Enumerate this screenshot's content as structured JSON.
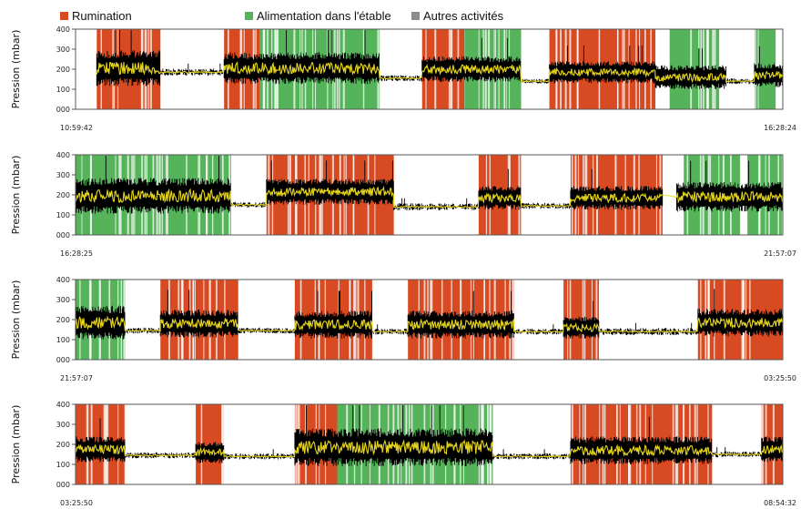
{
  "colors": {
    "rumination": "#d84a22",
    "feeding": "#55b35a",
    "other": "#8c8c8c",
    "signal": "#000000",
    "mean": "#f2e21c",
    "frame": "#555555",
    "stripe": "#ffffff"
  },
  "legend": [
    {
      "label": "Rumination",
      "color": "#d84a22"
    },
    {
      "label": "Alimentation dans l'étable",
      "color": "#55b35a"
    },
    {
      "label": "Autres activités",
      "color": "#8c8c8c"
    }
  ],
  "chart_data": [
    {
      "type": "line",
      "ylabel": "Pression (mbar)",
      "ylim": [
        0,
        400
      ],
      "yticks": [
        "000",
        "100",
        "200",
        "300",
        "400"
      ],
      "x_start": "10:59:42",
      "x_end": "16:28:24",
      "intervals": [
        {
          "activity": "rumination",
          "start": 0.03,
          "end": 0.12
        },
        {
          "activity": "rumination",
          "start": 0.21,
          "end": 0.26
        },
        {
          "activity": "feeding",
          "start": 0.26,
          "end": 0.43
        },
        {
          "activity": "rumination",
          "start": 0.49,
          "end": 0.55
        },
        {
          "activity": "feeding",
          "start": 0.55,
          "end": 0.63
        },
        {
          "activity": "rumination",
          "start": 0.67,
          "end": 0.82
        },
        {
          "activity": "feeding",
          "start": 0.84,
          "end": 0.91
        },
        {
          "activity": "feeding",
          "start": 0.96,
          "end": 0.99
        }
      ],
      "segments": [
        {
          "kind": "active",
          "start": 0.03,
          "end": 0.12,
          "mean": 205,
          "spread": 90
        },
        {
          "kind": "quiet",
          "start": 0.12,
          "end": 0.21,
          "mean": 185,
          "spread": 18
        },
        {
          "kind": "active",
          "start": 0.21,
          "end": 0.43,
          "mean": 205,
          "spread": 80
        },
        {
          "kind": "quiet",
          "start": 0.43,
          "end": 0.49,
          "mean": 155,
          "spread": 15
        },
        {
          "kind": "active",
          "start": 0.49,
          "end": 0.63,
          "mean": 200,
          "spread": 65
        },
        {
          "kind": "quiet",
          "start": 0.63,
          "end": 0.67,
          "mean": 140,
          "spread": 12
        },
        {
          "kind": "active",
          "start": 0.67,
          "end": 0.82,
          "mean": 185,
          "spread": 55
        },
        {
          "kind": "active",
          "start": 0.82,
          "end": 0.92,
          "mean": 160,
          "spread": 60
        },
        {
          "kind": "quiet",
          "start": 0.92,
          "end": 0.96,
          "mean": 140,
          "spread": 15
        },
        {
          "kind": "active",
          "start": 0.96,
          "end": 1.0,
          "mean": 170,
          "spread": 60
        }
      ]
    },
    {
      "type": "line",
      "ylabel": "Pression (mbar)",
      "ylim": [
        0,
        400
      ],
      "yticks": [
        "000",
        "100",
        "200",
        "300",
        "400"
      ],
      "x_start": "16:28:25",
      "x_end": "21:57:07",
      "intervals": [
        {
          "activity": "feeding",
          "start": 0.0,
          "end": 0.22
        },
        {
          "activity": "rumination",
          "start": 0.27,
          "end": 0.45
        },
        {
          "activity": "rumination",
          "start": 0.57,
          "end": 0.63
        },
        {
          "activity": "rumination",
          "start": 0.7,
          "end": 0.83
        },
        {
          "activity": "feeding",
          "start": 0.86,
          "end": 0.94
        },
        {
          "activity": "feeding",
          "start": 0.95,
          "end": 1.0
        }
      ],
      "segments": [
        {
          "kind": "active",
          "start": 0.0,
          "end": 0.22,
          "mean": 195,
          "spread": 90
        },
        {
          "kind": "quiet",
          "start": 0.22,
          "end": 0.27,
          "mean": 150,
          "spread": 15
        },
        {
          "kind": "active",
          "start": 0.27,
          "end": 0.45,
          "mean": 215,
          "spread": 65
        },
        {
          "kind": "quiet",
          "start": 0.45,
          "end": 0.57,
          "mean": 140,
          "spread": 18
        },
        {
          "kind": "active",
          "start": 0.57,
          "end": 0.63,
          "mean": 185,
          "spread": 60
        },
        {
          "kind": "quiet",
          "start": 0.63,
          "end": 0.7,
          "mean": 145,
          "spread": 15
        },
        {
          "kind": "active",
          "start": 0.7,
          "end": 0.83,
          "mean": 185,
          "spread": 60
        },
        {
          "kind": "active",
          "start": 0.85,
          "end": 1.0,
          "mean": 190,
          "spread": 75
        }
      ]
    },
    {
      "type": "line",
      "ylabel": "Pression (mbar)",
      "ylim": [
        0,
        400
      ],
      "yticks": [
        "000",
        "100",
        "200",
        "300",
        "400"
      ],
      "x_start": "21:57:07",
      "x_end": "03:25:50",
      "intervals": [
        {
          "activity": "feeding",
          "start": 0.0,
          "end": 0.07
        },
        {
          "activity": "rumination",
          "start": 0.12,
          "end": 0.23
        },
        {
          "activity": "rumination",
          "start": 0.31,
          "end": 0.42
        },
        {
          "activity": "rumination",
          "start": 0.47,
          "end": 0.62
        },
        {
          "activity": "rumination",
          "start": 0.69,
          "end": 0.74
        },
        {
          "activity": "rumination",
          "start": 0.88,
          "end": 1.0
        }
      ],
      "segments": [
        {
          "kind": "active",
          "start": 0.0,
          "end": 0.07,
          "mean": 185,
          "spread": 85
        },
        {
          "kind": "quiet",
          "start": 0.07,
          "end": 0.12,
          "mean": 145,
          "spread": 15
        },
        {
          "kind": "active",
          "start": 0.12,
          "end": 0.23,
          "mean": 180,
          "spread": 70
        },
        {
          "kind": "quiet",
          "start": 0.23,
          "end": 0.31,
          "mean": 145,
          "spread": 15
        },
        {
          "kind": "active",
          "start": 0.31,
          "end": 0.42,
          "mean": 175,
          "spread": 70
        },
        {
          "kind": "quiet",
          "start": 0.42,
          "end": 0.47,
          "mean": 140,
          "spread": 15
        },
        {
          "kind": "active",
          "start": 0.47,
          "end": 0.62,
          "mean": 175,
          "spread": 70
        },
        {
          "kind": "quiet",
          "start": 0.62,
          "end": 0.69,
          "mean": 140,
          "spread": 15
        },
        {
          "kind": "active",
          "start": 0.69,
          "end": 0.74,
          "mean": 160,
          "spread": 55
        },
        {
          "kind": "quiet",
          "start": 0.74,
          "end": 0.88,
          "mean": 140,
          "spread": 18
        },
        {
          "kind": "active",
          "start": 0.88,
          "end": 1.0,
          "mean": 185,
          "spread": 70
        }
      ]
    },
    {
      "type": "line",
      "ylabel": "Pression (mbar)",
      "ylim": [
        0,
        400
      ],
      "yticks": [
        "000",
        "100",
        "200",
        "300",
        "400"
      ],
      "x_start": "03:25:50",
      "x_end": "08:54:32",
      "intervals": [
        {
          "activity": "rumination",
          "start": 0.0,
          "end": 0.07
        },
        {
          "activity": "rumination",
          "start": 0.17,
          "end": 0.21
        },
        {
          "activity": "rumination",
          "start": 0.31,
          "end": 0.37
        },
        {
          "activity": "feeding",
          "start": 0.37,
          "end": 0.59
        },
        {
          "activity": "rumination",
          "start": 0.7,
          "end": 0.9
        },
        {
          "activity": "rumination",
          "start": 0.97,
          "end": 1.0
        }
      ],
      "segments": [
        {
          "kind": "active",
          "start": 0.0,
          "end": 0.07,
          "mean": 175,
          "spread": 65
        },
        {
          "kind": "quiet",
          "start": 0.07,
          "end": 0.17,
          "mean": 145,
          "spread": 15
        },
        {
          "kind": "active",
          "start": 0.17,
          "end": 0.21,
          "mean": 160,
          "spread": 55
        },
        {
          "kind": "quiet",
          "start": 0.21,
          "end": 0.31,
          "mean": 140,
          "spread": 15
        },
        {
          "kind": "active",
          "start": 0.31,
          "end": 0.59,
          "mean": 185,
          "spread": 95
        },
        {
          "kind": "quiet",
          "start": 0.59,
          "end": 0.7,
          "mean": 140,
          "spread": 15
        },
        {
          "kind": "active",
          "start": 0.7,
          "end": 0.9,
          "mean": 170,
          "spread": 70
        },
        {
          "kind": "quiet",
          "start": 0.9,
          "end": 0.97,
          "mean": 150,
          "spread": 15
        },
        {
          "kind": "active",
          "start": 0.97,
          "end": 1.0,
          "mean": 175,
          "spread": 65
        }
      ]
    }
  ]
}
